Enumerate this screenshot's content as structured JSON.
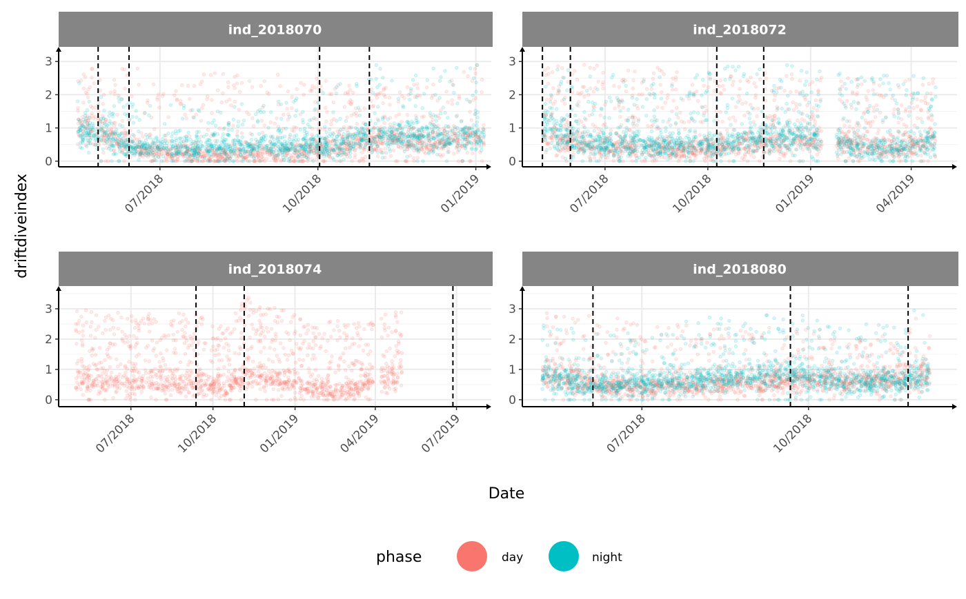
{
  "chart_data": {
    "type": "scatter",
    "layout": "facet 2x2",
    "xlabel": "Date",
    "ylabel": "driftdiveindex",
    "grid": true,
    "legend": {
      "title": "phase",
      "placement": "bottom",
      "entries": [
        {
          "name": "day",
          "color": "#F8766D"
        },
        {
          "name": "night",
          "color": "#00BFC4"
        }
      ]
    },
    "point_alpha": 0.15,
    "vline_style": "dashed black",
    "panels": [
      {
        "title": "ind_2018070",
        "xlim": [
          "2018-05-03",
          "2019-01-10"
        ],
        "ylim": [
          -0.17,
          3.44
        ],
        "x_ticks": [
          {
            "date": "2018-07-01",
            "label": "07/2018"
          },
          {
            "date": "2018-10-01",
            "label": "10/2018"
          },
          {
            "date": "2019-01-01",
            "label": "01/2019"
          }
        ],
        "y_ticks": [
          "0",
          "1",
          "2",
          "3"
        ],
        "vlines": [
          "2018-05-26",
          "2018-06-13",
          "2018-10-02",
          "2018-10-31"
        ],
        "data_range": [
          "2018-05-14",
          "2019-01-06"
        ],
        "gaps": [],
        "series": [
          {
            "name": "day",
            "profile": [
              [
                "2018-05-14",
                1.1,
                2.3
              ],
              [
                "2018-06-01",
                0.8,
                2.3
              ],
              [
                "2018-06-20",
                0.3,
                2.2
              ],
              [
                "2018-08-01",
                0.18,
                2.1
              ],
              [
                "2018-09-15",
                0.25,
                2.0
              ],
              [
                "2018-10-05",
                0.35,
                2.0
              ],
              [
                "2018-11-01",
                0.6,
                1.6
              ],
              [
                "2018-12-15",
                0.6,
                1.8
              ],
              [
                "2019-01-06",
                0.7,
                2.5
              ]
            ],
            "upper_share": 0.22
          },
          {
            "name": "night",
            "profile": [
              [
                "2018-05-14",
                1.0,
                1.8
              ],
              [
                "2018-06-01",
                0.7,
                1.5
              ],
              [
                "2018-06-15",
                0.4,
                1.2
              ],
              [
                "2018-08-01",
                0.45,
                1.0
              ],
              [
                "2018-10-05",
                0.45,
                1.5
              ],
              [
                "2018-11-01",
                0.75,
                2.3
              ],
              [
                "2018-12-15",
                0.7,
                2.2
              ],
              [
                "2019-01-06",
                0.75,
                2.4
              ]
            ],
            "upper_share": 0.12
          }
        ]
      },
      {
        "title": "ind_2018072",
        "xlim": [
          "2018-04-18",
          "2019-05-12"
        ],
        "ylim": [
          -0.17,
          3.44
        ],
        "x_ticks": [
          {
            "date": "2018-07-01",
            "label": "07/2018"
          },
          {
            "date": "2018-10-01",
            "label": "10/2018"
          },
          {
            "date": "2019-01-01",
            "label": "01/2019"
          },
          {
            "date": "2019-04-01",
            "label": "04/2019"
          }
        ],
        "y_ticks": [
          "0",
          "1",
          "2",
          "3"
        ],
        "vlines": [
          "2018-05-06",
          "2018-05-31",
          "2018-10-09",
          "2018-11-20"
        ],
        "data_range": [
          "2018-05-06",
          "2019-04-23"
        ],
        "gaps": [
          [
            "2019-01-11",
            "2019-01-24"
          ]
        ],
        "series": [
          {
            "name": "day",
            "profile": [
              [
                "2018-05-06",
                0.8,
                2.3
              ],
              [
                "2018-06-15",
                0.4,
                2.3
              ],
              [
                "2018-09-01",
                0.35,
                2.2
              ],
              [
                "2018-10-15",
                0.4,
                2.0
              ],
              [
                "2018-11-20",
                0.5,
                2.2
              ],
              [
                "2018-12-20",
                0.6,
                2.0
              ],
              [
                "2019-02-15",
                0.5,
                1.9
              ],
              [
                "2019-03-15",
                0.35,
                1.8
              ],
              [
                "2019-04-23",
                0.6,
                2.0
              ]
            ],
            "upper_share": 0.25
          },
          {
            "name": "night",
            "profile": [
              [
                "2018-05-06",
                1.0,
                2.4
              ],
              [
                "2018-06-15",
                0.5,
                2.0
              ],
              [
                "2018-09-01",
                0.5,
                2.0
              ],
              [
                "2018-10-15",
                0.55,
                2.3
              ],
              [
                "2018-11-20",
                0.7,
                2.3
              ],
              [
                "2018-12-20",
                0.8,
                2.3
              ],
              [
                "2019-02-15",
                0.4,
                2.0
              ],
              [
                "2019-03-15",
                0.35,
                2.0
              ],
              [
                "2019-04-23",
                0.6,
                2.0
              ]
            ],
            "upper_share": 0.2
          }
        ]
      },
      {
        "title": "ind_2018074",
        "xlim": [
          "2018-04-11",
          "2019-08-09"
        ],
        "ylim": [
          -0.23,
          3.75
        ],
        "x_ticks": [
          {
            "date": "2018-07-01",
            "label": "07/2018"
          },
          {
            "date": "2018-10-01",
            "label": "10/2018"
          },
          {
            "date": "2019-01-01",
            "label": "01/2019"
          },
          {
            "date": "2019-04-01",
            "label": "04/2019"
          },
          {
            "date": "2019-07-01",
            "label": "07/2019"
          }
        ],
        "y_ticks": [
          "0",
          "1",
          "2",
          "3"
        ],
        "vlines": [
          "2018-09-12",
          "2018-11-05",
          "2019-06-27"
        ],
        "data_range": [
          "2018-04-30",
          "2019-05-01"
        ],
        "gaps": [
          [
            "2019-03-30",
            "2019-04-07"
          ]
        ],
        "series": [
          {
            "name": "day",
            "profile": [
              [
                "2018-04-30",
                0.7,
                2.5
              ],
              [
                "2018-07-01",
                0.55,
                2.2
              ],
              [
                "2018-09-12",
                0.6,
                2.4
              ],
              [
                "2018-10-15",
                0.4,
                1.8
              ],
              [
                "2018-11-06",
                0.8,
                2.8
              ],
              [
                "2018-12-20",
                0.7,
                2.4
              ],
              [
                "2019-01-15",
                0.4,
                2.0
              ],
              [
                "2019-03-01",
                0.3,
                2.0
              ],
              [
                "2019-03-28",
                0.6,
                2.4
              ],
              [
                "2019-05-01",
                0.8,
                2.3
              ]
            ],
            "upper_share": 0.35
          }
        ]
      },
      {
        "title": "ind_2018080",
        "xlim": [
          "2018-04-26",
          "2018-12-22"
        ],
        "ylim": [
          -0.23,
          3.75
        ],
        "x_ticks": [
          {
            "date": "2018-07-01",
            "label": "07/2018"
          },
          {
            "date": "2018-10-01",
            "label": "10/2018"
          }
        ],
        "y_ticks": [
          "0",
          "1",
          "2",
          "3"
        ],
        "vlines": [
          "2018-06-04",
          "2018-09-21",
          "2018-11-25"
        ],
        "data_range": [
          "2018-05-07",
          "2018-12-07"
        ],
        "gaps": [],
        "series": [
          {
            "name": "day",
            "profile": [
              [
                "2018-05-07",
                0.9,
                2.3
              ],
              [
                "2018-06-01",
                0.5,
                2.2
              ],
              [
                "2018-07-01",
                0.4,
                2.1
              ],
              [
                "2018-08-15",
                0.5,
                1.8
              ],
              [
                "2018-09-20",
                0.65,
                2.0
              ],
              [
                "2018-10-20",
                0.6,
                1.5
              ],
              [
                "2018-11-20",
                0.65,
                1.5
              ],
              [
                "2018-12-07",
                0.8,
                2.6
              ]
            ],
            "upper_share": 0.18
          },
          {
            "name": "night",
            "profile": [
              [
                "2018-05-07",
                0.8,
                2.2
              ],
              [
                "2018-06-01",
                0.5,
                1.6
              ],
              [
                "2018-07-01",
                0.55,
                1.8
              ],
              [
                "2018-08-15",
                0.7,
                2.2
              ],
              [
                "2018-09-20",
                0.85,
                2.3
              ],
              [
                "2018-10-20",
                0.6,
                1.9
              ],
              [
                "2018-11-20",
                0.55,
                2.2
              ],
              [
                "2018-12-07",
                0.8,
                2.6
              ]
            ],
            "upper_share": 0.15
          }
        ]
      }
    ]
  }
}
